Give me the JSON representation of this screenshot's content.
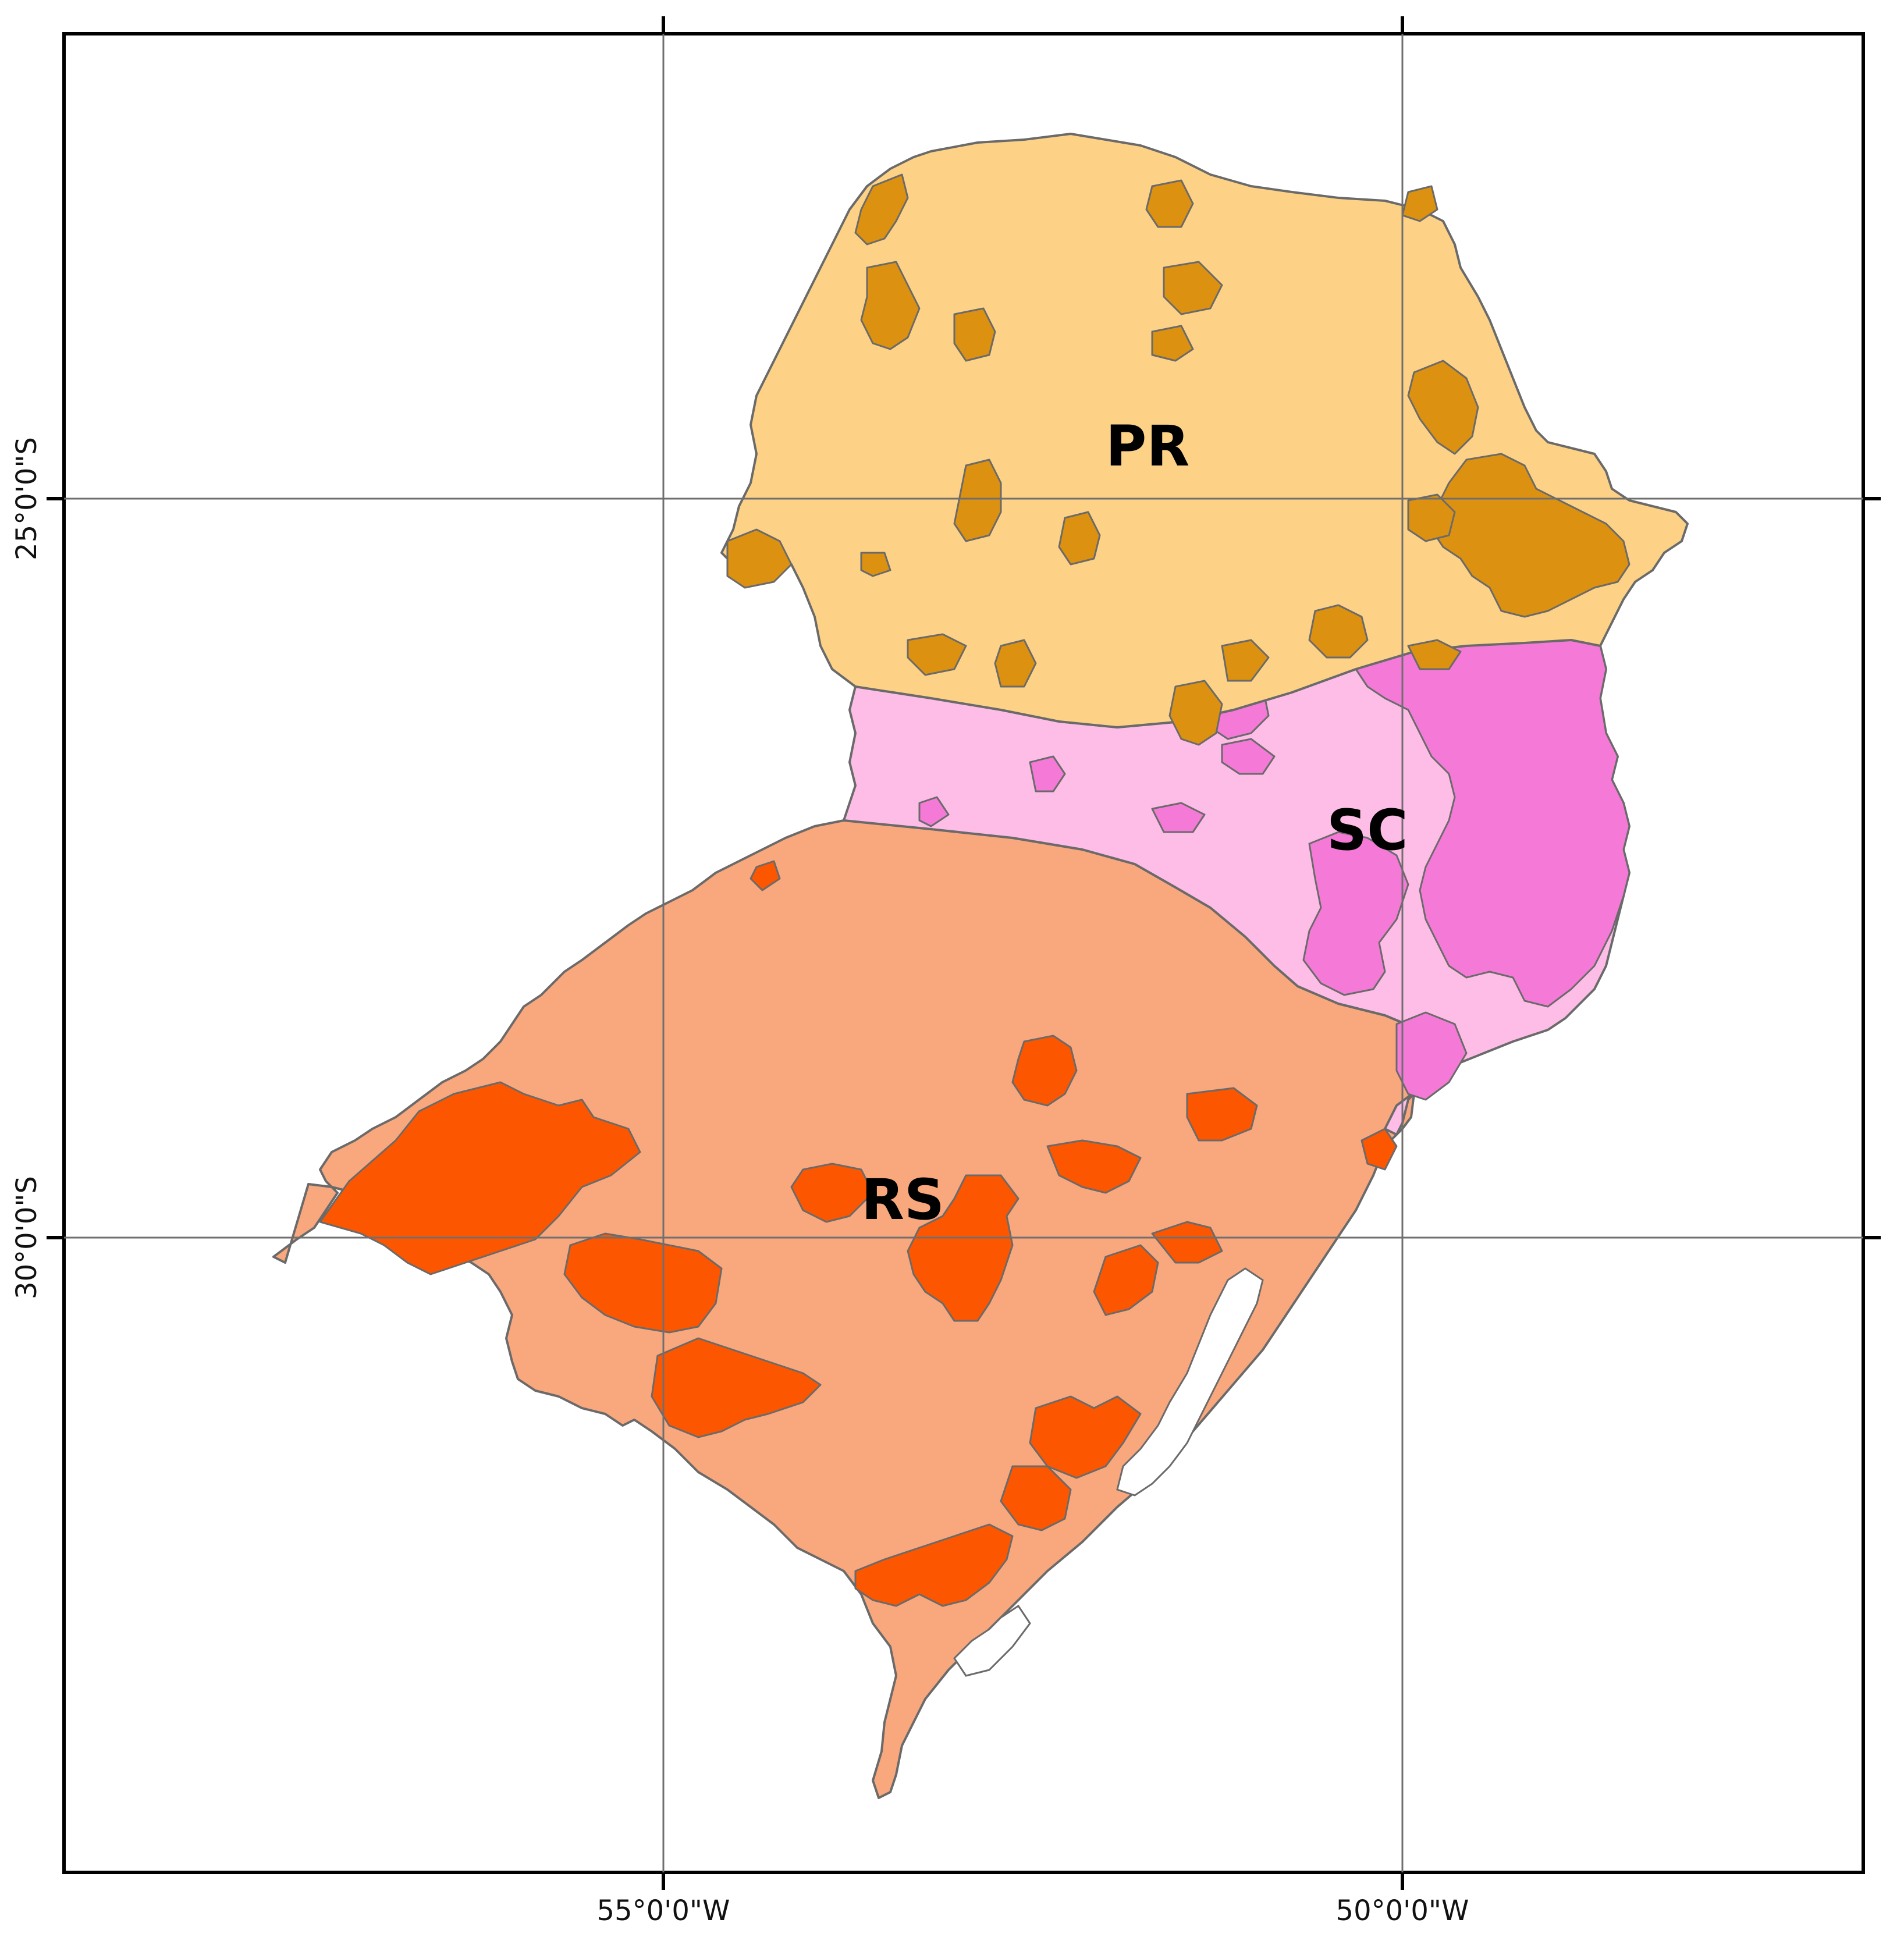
{
  "map": {
    "states": [
      {
        "label": "PR",
        "base_color": "#fdd286",
        "highlight_color": "#dc9110"
      },
      {
        "label": "SC",
        "base_color": "#fdbde6",
        "highlight_color": "#f57ad8"
      },
      {
        "label": "RS",
        "base_color": "#f9a77d",
        "highlight_color": "#fc5700"
      }
    ],
    "graticule": {
      "longitude_labels": [
        "55°0'0\"W",
        "50°0'0\"W"
      ],
      "latitude_labels": [
        "25°0'0\"S",
        "30°0'0\"S"
      ]
    },
    "colors": {
      "frame": "#000000",
      "grid": "#6f6f6f",
      "boundary": "#6a6a6a",
      "water": "#ffffff"
    }
  }
}
